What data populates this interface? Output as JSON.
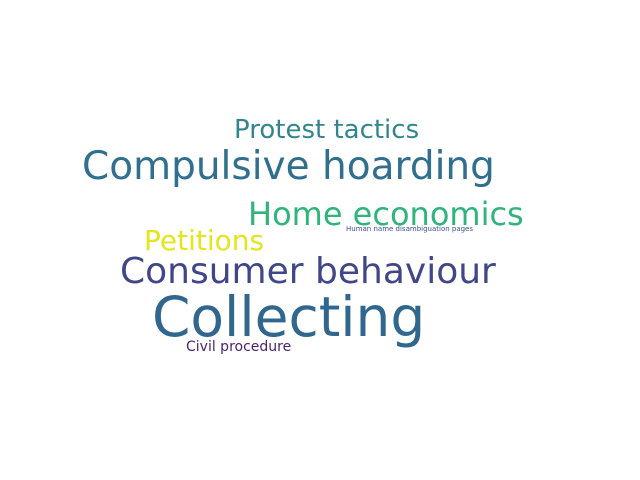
{
  "words": [
    {
      "text": "Protest tactics",
      "color": "#31868d"
    },
    {
      "text": "Compulsive hoarding",
      "color": "#30708e"
    },
    {
      "text": "Home economics",
      "color": "#2fb47c"
    },
    {
      "text": "Human name disambiguation pages",
      "color": "#3b518b"
    },
    {
      "text": "Petitions",
      "color": "#e3e51d"
    },
    {
      "text": "Consumer behaviour",
      "color": "#404688"
    },
    {
      "text": "Collecting",
      "color": "#31678e"
    },
    {
      "text": "Civil procedure",
      "color": "#482374"
    }
  ]
}
